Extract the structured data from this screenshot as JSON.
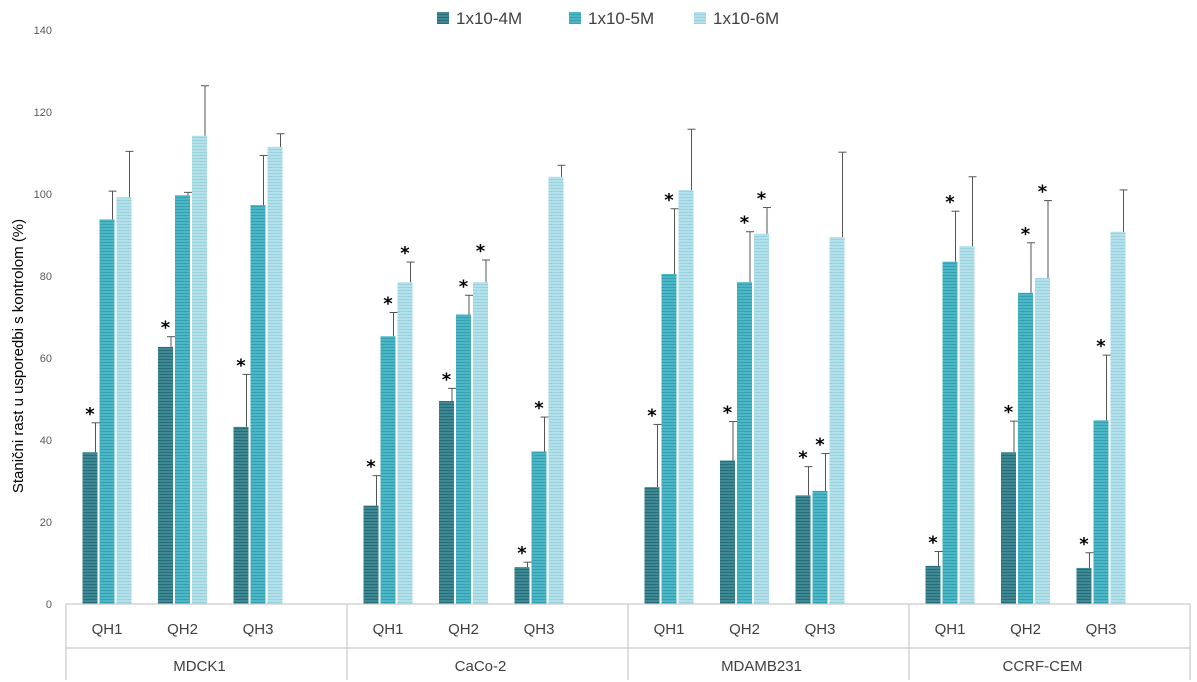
{
  "chart_data": {
    "type": "bar",
    "title": "",
    "xlabel": "",
    "ylabel": "Stanični rast u usporedbi s kontrolom (%)",
    "ylim": [
      0,
      140
    ],
    "yticks": [
      "0",
      "20",
      "40",
      "60",
      "80",
      "100",
      "120",
      "140"
    ],
    "grid": false,
    "legend_position": "top-center",
    "groups": [
      {
        "name": "MDCK1",
        "categories": [
          "QH1",
          "QH2",
          "QH3"
        ]
      },
      {
        "name": "CaCo-2",
        "categories": [
          "QH1",
          "QH2",
          "QH3"
        ]
      },
      {
        "name": "MDAMB231",
        "categories": [
          "QH1",
          "QH2",
          "QH3"
        ]
      },
      {
        "name": "CCRF-CEM",
        "categories": [
          "QH1",
          "QH2",
          "QH3"
        ]
      }
    ],
    "significance_marker": "*",
    "series": [
      {
        "name": "1x10-4M",
        "color": "#3d8a96",
        "values": [
          37,
          62.7,
          43.2,
          24,
          49.5,
          9,
          28.5,
          35,
          26.5,
          9.3,
          37,
          8.8
        ],
        "errors": [
          7.2,
          2.5,
          12.8,
          7.3,
          3.1,
          1.2,
          15.3,
          9.5,
          7,
          3.5,
          7.6,
          3.7
        ],
        "significant": [
          true,
          true,
          true,
          true,
          true,
          true,
          true,
          true,
          true,
          true,
          true,
          true
        ]
      },
      {
        "name": "1x10-5M",
        "color": "#4ab6c6",
        "values": [
          93.8,
          99.7,
          97.3,
          65.3,
          70.6,
          37.2,
          80.5,
          78.5,
          27.6,
          83.5,
          75.9,
          44.8
        ],
        "errors": [
          6.9,
          0.7,
          12.1,
          5.8,
          4.7,
          8.4,
          15.9,
          12.3,
          9.1,
          12.3,
          12.2,
          15.9
        ],
        "significant": [
          false,
          false,
          false,
          true,
          true,
          true,
          true,
          true,
          true,
          true,
          true,
          true
        ]
      },
      {
        "name": "1x10-6M",
        "color": "#a8dbe6",
        "values": [
          99.2,
          114.2,
          111.5,
          78.5,
          78.5,
          104.2,
          101,
          90.3,
          89.5,
          87.3,
          79.5,
          90.8
        ],
        "errors": [
          11.2,
          12.2,
          3.2,
          4.9,
          5.4,
          2.8,
          14.8,
          6.4,
          20.7,
          16.9,
          18.9,
          10.2
        ],
        "significant": [
          false,
          false,
          false,
          true,
          true,
          false,
          false,
          true,
          false,
          false,
          true,
          false
        ]
      }
    ]
  }
}
